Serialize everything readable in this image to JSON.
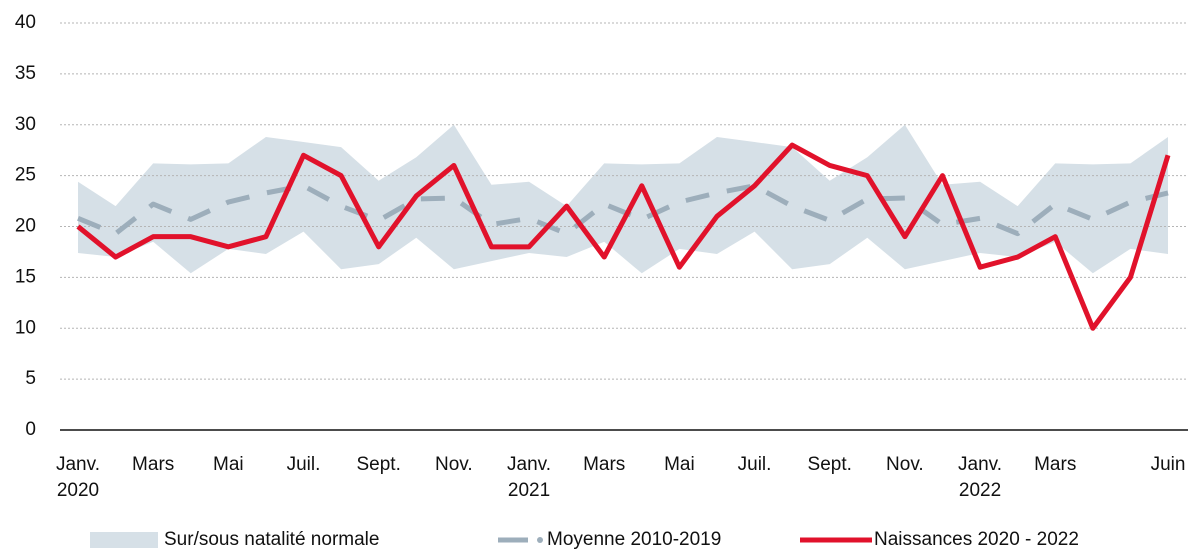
{
  "chart_data": {
    "type": "line",
    "categories": [
      "Janv. 2020",
      null,
      "Mars",
      null,
      "Mai",
      null,
      "Juil.",
      null,
      "Sept.",
      null,
      "Nov.",
      null,
      "Janv. 2021",
      null,
      "Mars",
      null,
      "Mai",
      null,
      "Juil.",
      null,
      "Sept.",
      null,
      "Nov.",
      null,
      "Janv. 2022",
      null,
      "Mars",
      null,
      null,
      "Juin"
    ],
    "ylim": [
      0,
      40
    ],
    "yticks": [
      0,
      5,
      10,
      15,
      20,
      25,
      30,
      35,
      40
    ],
    "grid": true,
    "band": {
      "name": "Sur/sous natalité normale",
      "color": "#d6e0e7",
      "high": [
        24.4,
        22,
        26.2,
        26.1,
        26.2,
        28.8,
        28.3,
        27.8,
        24.5,
        26.8,
        30,
        24.1,
        24.4,
        22,
        26.2,
        26.1,
        26.2,
        28.8,
        28.3,
        27.8,
        24.5,
        26.8,
        30,
        24.1,
        24.4,
        22,
        26.2,
        26.1,
        26.2,
        28.8
      ],
      "low": [
        17.4,
        17,
        18.5,
        15.4,
        17.8,
        17.3,
        19.5,
        15.8,
        16.3,
        18.9,
        15.8,
        16.6,
        17.4,
        17,
        18.5,
        15.4,
        17.8,
        17.3,
        19.5,
        15.8,
        16.3,
        18.9,
        15.8,
        16.6,
        17.4,
        17,
        18.5,
        15.4,
        17.8,
        17.3
      ]
    },
    "series": [
      {
        "name": "Moyenne 2010-2019",
        "color": "#9daebb",
        "dashed": true,
        "values": [
          20.8,
          19.3,
          22.2,
          20.7,
          22.4,
          23.3,
          24,
          22,
          20.6,
          22.7,
          22.8,
          20.2,
          20.8,
          19.3,
          22.2,
          20.7,
          22.4,
          23.3,
          24,
          22,
          20.6,
          22.7,
          22.8,
          20.2,
          20.8,
          19.3,
          22.2,
          20.7,
          22.4,
          23.3
        ]
      },
      {
        "name": "Naissances 2020 - 2022",
        "color": "#e1122b",
        "dashed": false,
        "values": [
          20,
          17,
          19,
          19,
          18,
          19,
          27,
          25,
          18,
          23,
          26,
          18,
          18,
          22,
          17,
          24,
          16,
          21,
          24,
          28,
          26,
          25,
          19,
          25,
          16,
          17,
          19,
          10,
          15,
          27
        ]
      }
    ]
  }
}
